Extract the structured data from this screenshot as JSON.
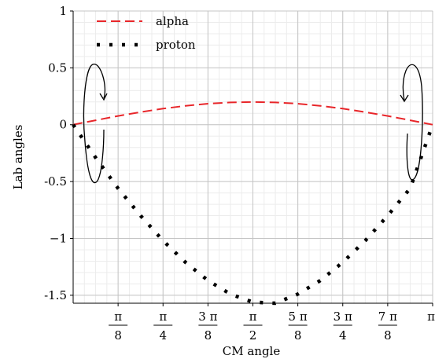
{
  "chart_data": {
    "type": "line",
    "title": "",
    "xlabel": "CM angle",
    "ylabel": "Lab angles",
    "xlim": [
      0,
      3.14159
    ],
    "ylim": [
      -1.57,
      1.0
    ],
    "grid": true,
    "legend_position": "top-left",
    "x_ticks": [
      {
        "value": 0.3927,
        "num": "π",
        "den": "8"
      },
      {
        "value": 0.7854,
        "num": "π",
        "den": "4"
      },
      {
        "value": 1.1781,
        "num": "3 π",
        "den": "8"
      },
      {
        "value": 1.5708,
        "num": "π",
        "den": "2"
      },
      {
        "value": 1.9635,
        "num": "5 π",
        "den": "8"
      },
      {
        "value": 2.3562,
        "num": "3 π",
        "den": "4"
      },
      {
        "value": 2.7489,
        "num": "7 π",
        "den": "8"
      },
      {
        "value": 3.14159,
        "num": "π",
        "den": ""
      }
    ],
    "y_ticks": [
      {
        "value": 1,
        "label": "1"
      },
      {
        "value": 0.5,
        "label": "0.5"
      },
      {
        "value": 0,
        "label": "0"
      },
      {
        "value": -0.5,
        "label": "-0.5"
      },
      {
        "value": -1,
        "label": "−1"
      },
      {
        "value": -1.5,
        "label": "-1.5"
      }
    ],
    "series": [
      {
        "name": "alpha",
        "color": "#e8262a",
        "style": "dashed",
        "x": [
          0,
          0.1963,
          0.3927,
          0.589,
          0.7854,
          0.9817,
          1.1781,
          1.3744,
          1.5708,
          1.7671,
          1.9635,
          2.1598,
          2.3562,
          2.5525,
          2.7489,
          2.9452,
          3.14159
        ],
        "y": [
          0,
          0.039,
          0.077,
          0.111,
          0.141,
          0.166,
          0.185,
          0.196,
          0.2,
          0.196,
          0.185,
          0.166,
          0.141,
          0.111,
          0.077,
          0.039,
          0
        ]
      },
      {
        "name": "proton",
        "color": "#000000",
        "style": "dotted",
        "x": [
          0,
          0.1963,
          0.3927,
          0.589,
          0.7854,
          0.9817,
          1.1781,
          1.3744,
          1.5708,
          1.7671,
          1.9635,
          2.1598,
          2.3562,
          2.5525,
          2.7489,
          2.9452,
          3.14159
        ],
        "y": [
          0,
          -0.29,
          -0.56,
          -0.8,
          -1.02,
          -1.21,
          -1.37,
          -1.49,
          -1.56,
          -1.57,
          -1.49,
          -1.37,
          -1.21,
          -1.02,
          -0.8,
          -0.56,
          0
        ]
      }
    ],
    "annotations": [
      {
        "type": "loop-arrow",
        "near": "left"
      },
      {
        "type": "loop-arrow",
        "near": "right"
      }
    ]
  }
}
